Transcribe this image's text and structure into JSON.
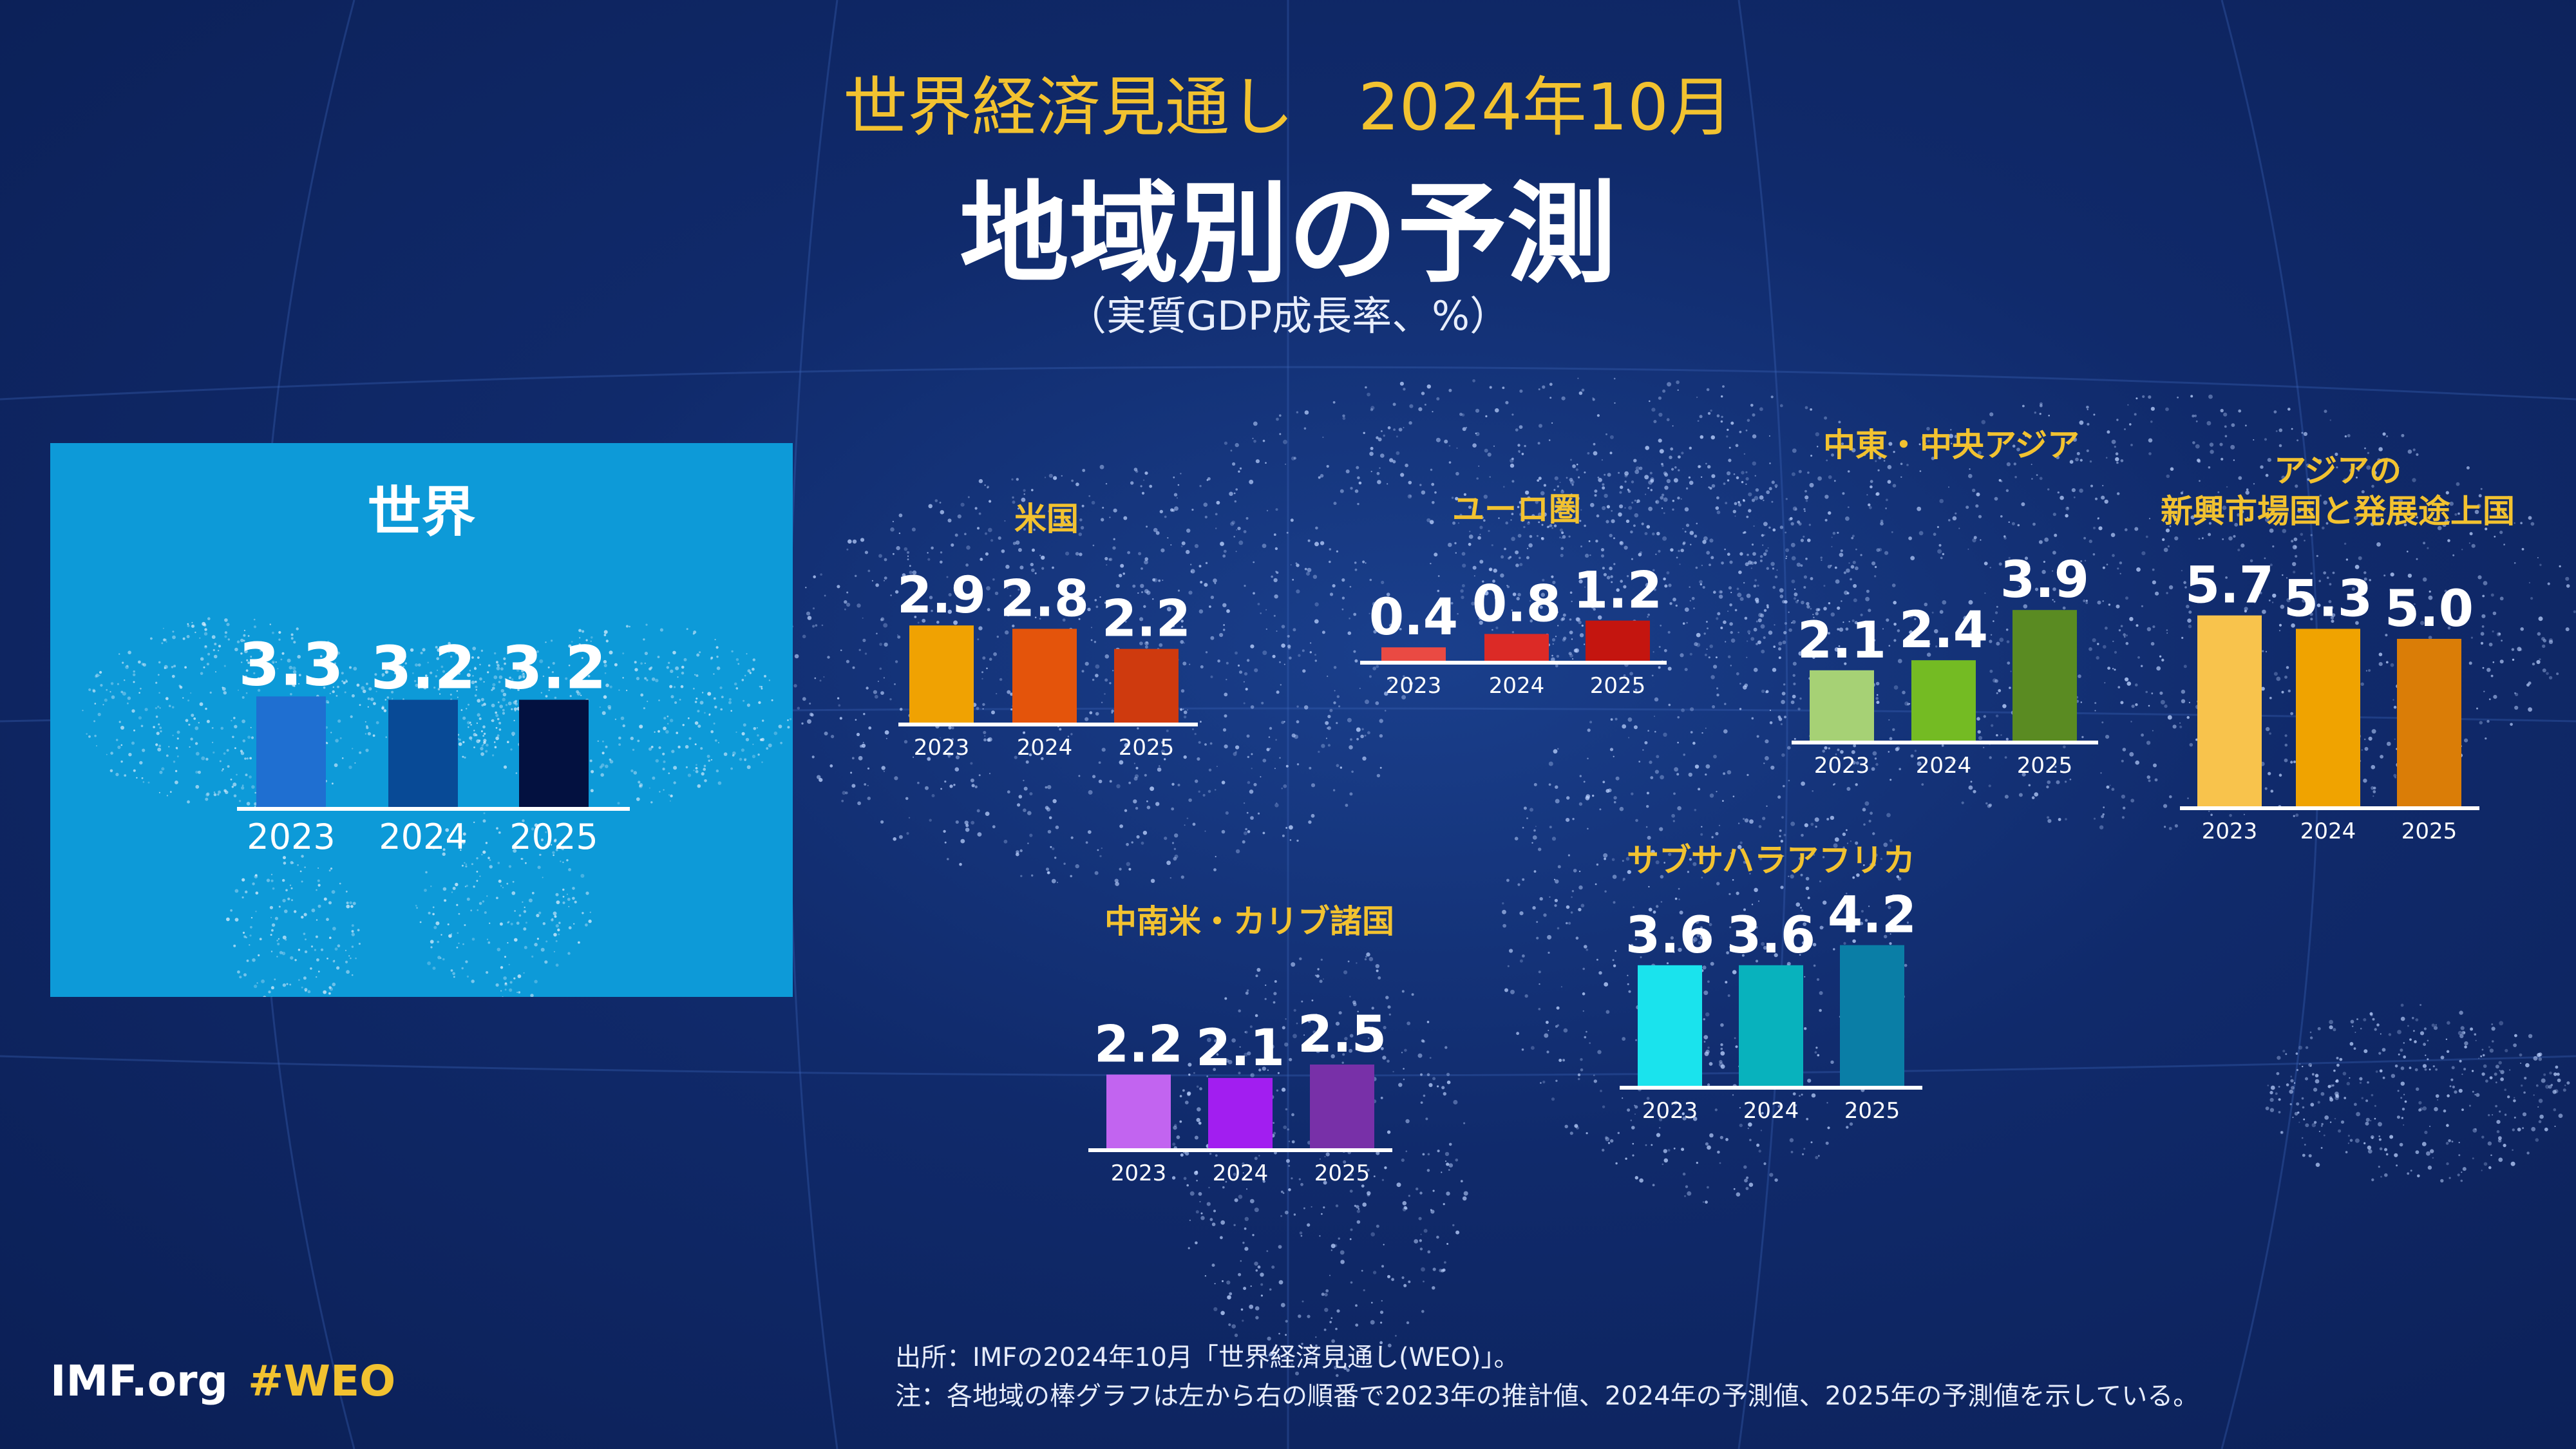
{
  "header": {
    "edition": "世界経済見通し　2024年10月",
    "title": "地域別の予測",
    "unit": "（実質GDP成長率、%）"
  },
  "chart_data": [
    {
      "type": "bar",
      "region": "世界",
      "title": "世界",
      "categories": [
        "2023",
        "2024",
        "2025"
      ],
      "values": [
        3.3,
        3.2,
        3.2
      ],
      "colors": [
        "#1f6fd1",
        "#084a96",
        "#031140"
      ]
    },
    {
      "type": "bar",
      "region": "米国",
      "title": "米国",
      "categories": [
        "2023",
        "2024",
        "2025"
      ],
      "values": [
        2.9,
        2.8,
        2.2
      ],
      "colors": [
        "#f0a202",
        "#e4540b",
        "#cf3a0e"
      ]
    },
    {
      "type": "bar",
      "region": "ユーロ圏",
      "title": "ユーロ圏",
      "categories": [
        "2023",
        "2024",
        "2025"
      ],
      "values": [
        0.4,
        0.8,
        1.2
      ],
      "colors": [
        "#ea4a43",
        "#dc2a26",
        "#c4150f"
      ]
    },
    {
      "type": "bar",
      "region": "中東・中央アジア",
      "title": "中東・中央アジア",
      "categories": [
        "2023",
        "2024",
        "2025"
      ],
      "values": [
        2.1,
        2.4,
        3.9
      ],
      "colors": [
        "#a6d175",
        "#74bb23",
        "#5a8b22"
      ]
    },
    {
      "type": "bar",
      "region": "アジアの新興市場国と発展途上国",
      "title": "アジアの新興市場国と発展途上国",
      "categories": [
        "2023",
        "2024",
        "2025"
      ],
      "values": [
        5.7,
        5.3,
        5.0
      ],
      "colors": [
        "#f8c34c",
        "#f0a300",
        "#da7d07"
      ]
    },
    {
      "type": "bar",
      "region": "中南米・カリブ諸国",
      "title": "中南米・カリブ諸国",
      "categories": [
        "2023",
        "2024",
        "2025"
      ],
      "values": [
        2.2,
        2.1,
        2.5
      ],
      "colors": [
        "#c264f0",
        "#a21ef0",
        "#7830a8"
      ]
    },
    {
      "type": "bar",
      "region": "サブサハラアフリカ",
      "title": "サブサハラアフリカ",
      "categories": [
        "2023",
        "2024",
        "2025"
      ],
      "values": [
        3.6,
        3.6,
        4.2
      ],
      "colors": [
        "#1ae3ed",
        "#08b2bd",
        "#0a7ea6"
      ]
    }
  ],
  "labels": {
    "asia_line1": "アジアの",
    "asia_line2": "新興市場国と発展途上国"
  },
  "footer": {
    "site": "IMF.org",
    "hashtag": "#WEO",
    "source": "出所：IMFの2024年10月「世界経済見通し(WEO)」。",
    "note": "注：各地域の棒グラフは左から右の順番で2023年の推計値、2024年の予測値、2025年の予測値を示している。"
  },
  "colors": {
    "accent": "#f2c230",
    "background": "#102a6b",
    "world_panel": "#0d9ad8"
  }
}
